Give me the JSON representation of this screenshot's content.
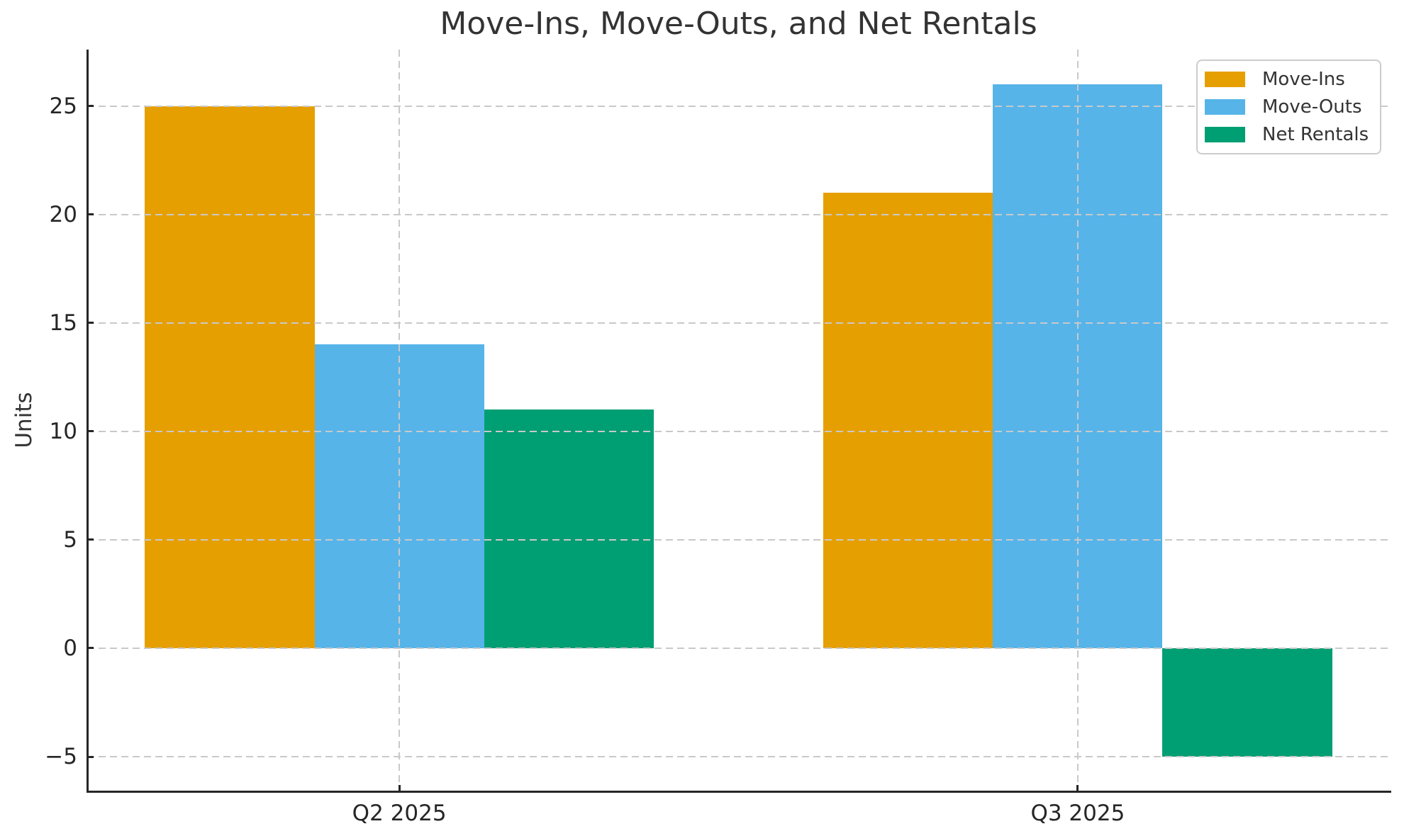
{
  "chart_data": {
    "type": "bar",
    "title": "Move-Ins, Move-Outs, and Net Rentals",
    "ylabel": "Units",
    "xlabel": "",
    "categories": [
      "Q2 2025",
      "Q3 2025"
    ],
    "series": [
      {
        "name": "Move-Ins",
        "color": "#E69F00",
        "values": [
          25,
          21
        ]
      },
      {
        "name": "Move-Outs",
        "color": "#56B4E9",
        "values": [
          14,
          26
        ]
      },
      {
        "name": "Net Rentals",
        "color": "#009E73",
        "values": [
          11,
          -5
        ]
      }
    ],
    "yticks": [
      -5,
      0,
      5,
      10,
      15,
      20,
      25
    ],
    "ylim": [
      -6.6,
      27.6
    ],
    "grid": true,
    "grid_style": "dashed",
    "grid_on_top": true,
    "legend_position": "upper right",
    "style": {
      "grid_color": "#c9c9c9",
      "spine_color": "#262626",
      "text_color": "#333333"
    }
  }
}
